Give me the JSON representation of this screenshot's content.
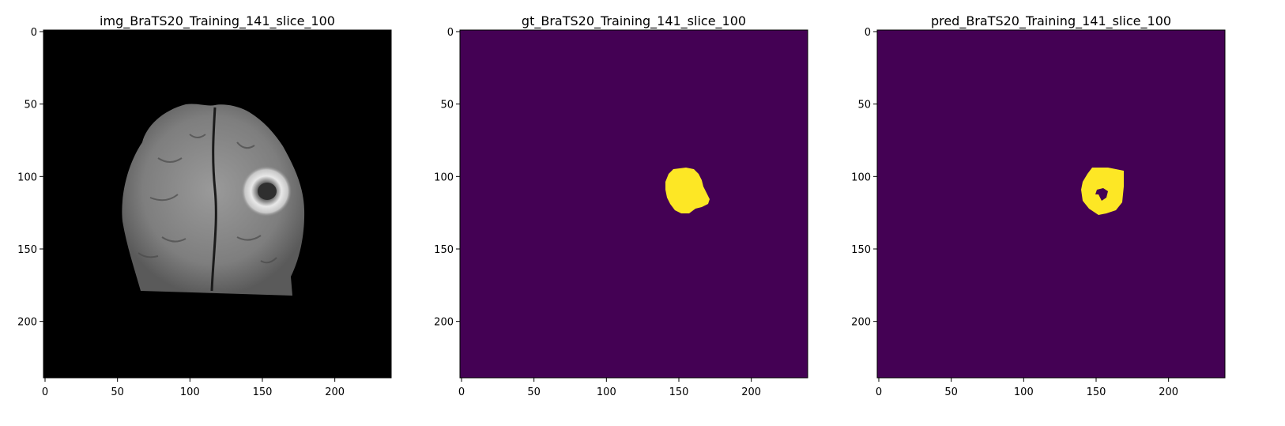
{
  "panels": [
    {
      "id": "img",
      "title": "img_BraTS20_Training_141_slice_100",
      "image_kind": "grayscale-mri-slice",
      "colors": {
        "background": "#000000",
        "tissue": "#8a8a8a",
        "lesion_ring": "#e6e6e6"
      }
    },
    {
      "id": "gt",
      "title": "gt_BraTS20_Training_141_slice_100",
      "image_kind": "binary-mask",
      "colors": {
        "background": "#440154",
        "mask": "#fde725"
      }
    },
    {
      "id": "pred",
      "title": "pred_BraTS20_Training_141_slice_100",
      "image_kind": "binary-mask-with-hole",
      "colors": {
        "background": "#440154",
        "mask": "#fde725"
      }
    }
  ],
  "axes": {
    "x_ticks": [
      "0",
      "50",
      "100",
      "150",
      "200"
    ],
    "y_ticks": [
      "0",
      "50",
      "100",
      "150",
      "200"
    ],
    "range": [
      0,
      240
    ]
  }
}
